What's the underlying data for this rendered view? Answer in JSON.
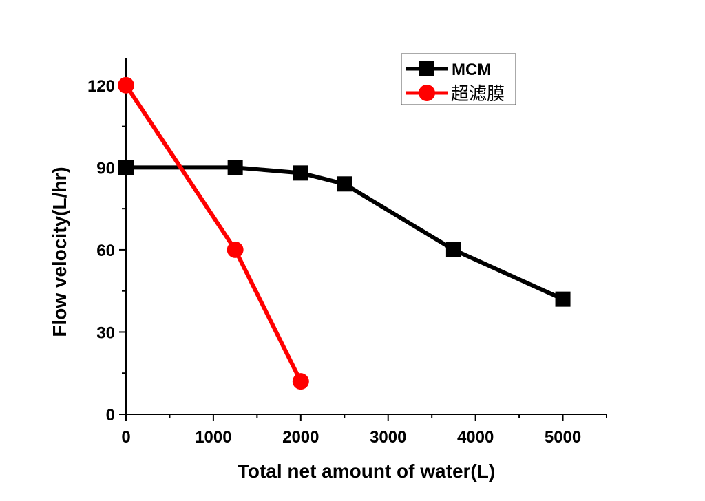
{
  "chart_data": {
    "type": "line",
    "title": "",
    "xlabel": "Total net amount of water(L)",
    "ylabel": "Flow velocity(L/hr)",
    "xlim": [
      0,
      5500
    ],
    "ylim": [
      0,
      130
    ],
    "xticks": [
      0,
      1000,
      2000,
      3000,
      4000,
      5000
    ],
    "yticks": [
      0,
      30,
      60,
      90,
      120
    ],
    "xtick_labels": [
      "0",
      "1000",
      "2000",
      "3000",
      "4000",
      "5000"
    ],
    "ytick_labels": [
      "0",
      "30",
      "60",
      "90",
      "120"
    ],
    "x_minor_step": 500,
    "y_minor_step": 15,
    "grid": false,
    "legend_position": "top-right",
    "series": [
      {
        "name": "MCM",
        "color": "#000000",
        "marker": "square",
        "x": [
          0,
          1250,
          2000,
          2500,
          3750,
          5000
        ],
        "y": [
          90,
          90,
          88,
          84,
          60,
          42
        ]
      },
      {
        "name": "超滤膜",
        "color": "#ff0000",
        "marker": "circle",
        "x": [
          0,
          1250,
          2000
        ],
        "y": [
          120,
          60,
          12
        ]
      }
    ]
  }
}
